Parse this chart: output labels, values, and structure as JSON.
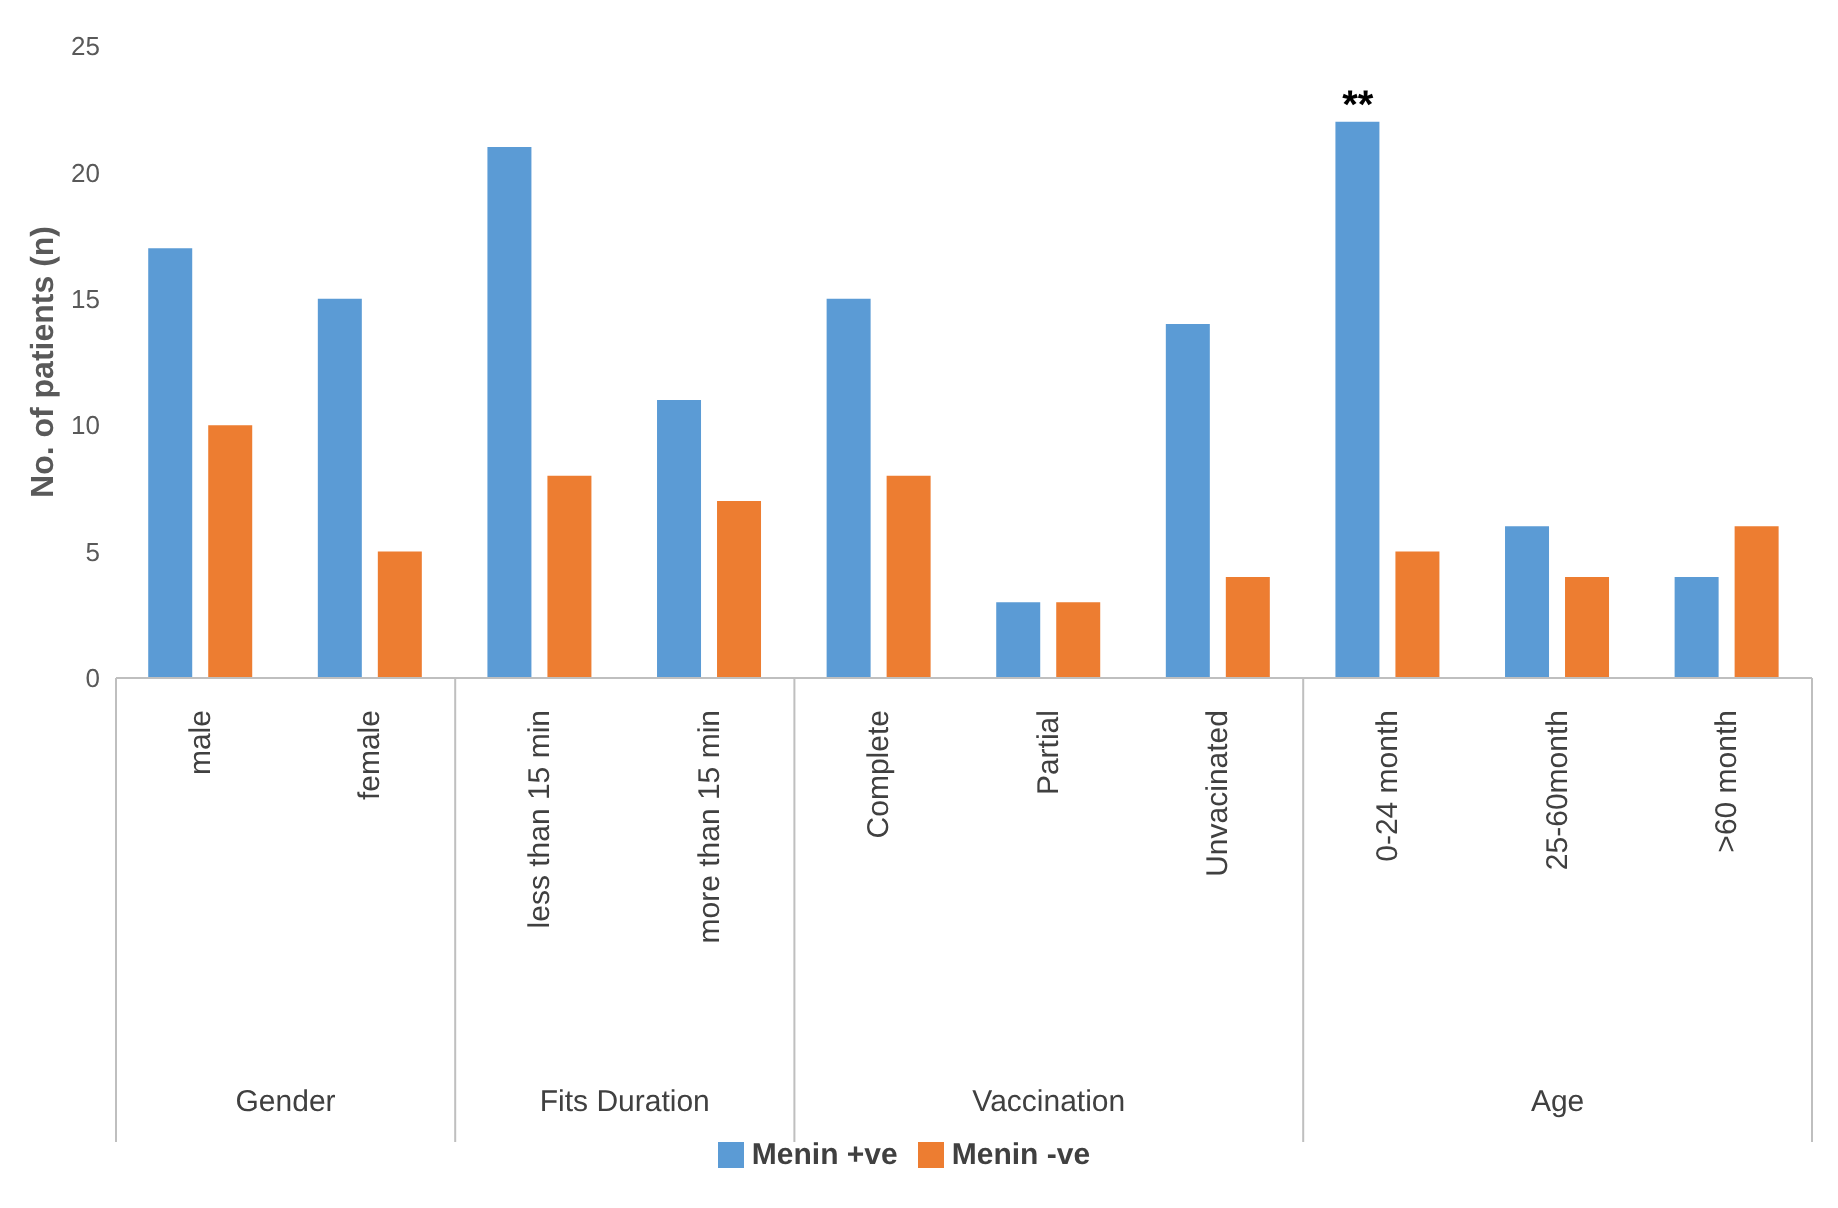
{
  "chart_data": {
    "type": "bar",
    "ylabel": "No. of patients (n)",
    "categories": [
      "male",
      "female",
      "less than 15 min",
      "more than 15 min",
      "Complete",
      "Partial",
      "Unvacinated",
      "0-24 month",
      "25-60month",
      ">60 month"
    ],
    "series": [
      {
        "name": "Menin +ve",
        "color": "#5b9bd5",
        "values": [
          17,
          15,
          21,
          11,
          15,
          3,
          14,
          22,
          6,
          4
        ]
      },
      {
        "name": "Menin -ve",
        "color": "#ed7d31",
        "values": [
          10,
          5,
          8,
          7,
          8,
          3,
          4,
          5,
          4,
          6
        ]
      }
    ],
    "ylim": [
      0,
      25
    ],
    "yticks": [
      0,
      5,
      10,
      15,
      20,
      25
    ],
    "grid": false,
    "legend": "bottom",
    "annotations": [
      "Gender",
      "Fits Duration",
      "Vaccination",
      "Age",
      {
        "text": "**",
        "x": "0-24 month",
        "y": 22
      }
    ]
  }
}
